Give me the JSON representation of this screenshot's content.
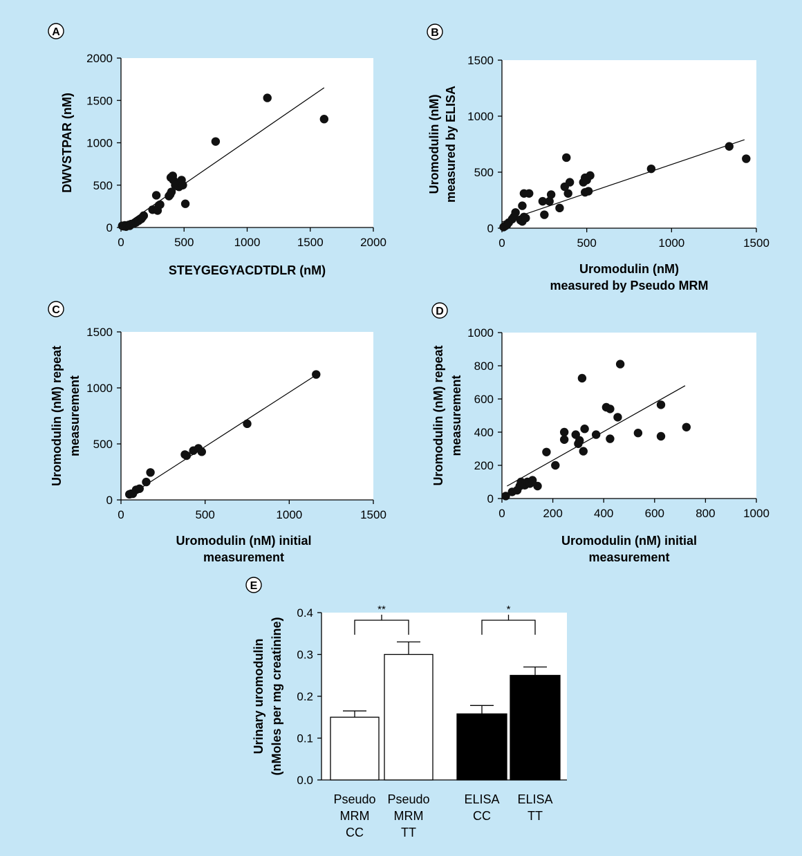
{
  "background": "#c5e6f6",
  "chart_data": [
    {
      "panel": "A",
      "type": "scatter",
      "xlabel": "STEYGEGYACDTDLR (nM)",
      "ylabel": "DWVSTPAR (nM)",
      "xlim": [
        0,
        2000
      ],
      "ylim": [
        0,
        2000
      ],
      "xticks": [
        0,
        500,
        1000,
        1500,
        2000
      ],
      "yticks": [
        0,
        500,
        1000,
        1500,
        2000
      ],
      "fit": [
        [
          0,
          0
        ],
        [
          1610,
          1650
        ]
      ],
      "points": [
        [
          10,
          20
        ],
        [
          20,
          15
        ],
        [
          30,
          25
        ],
        [
          40,
          10
        ],
        [
          50,
          20
        ],
        [
          60,
          30
        ],
        [
          70,
          20
        ],
        [
          80,
          40
        ],
        [
          100,
          45
        ],
        [
          120,
          60
        ],
        [
          140,
          80
        ],
        [
          160,
          100
        ],
        [
          170,
          120
        ],
        [
          180,
          140
        ],
        [
          250,
          210
        ],
        [
          280,
          380
        ],
        [
          290,
          200
        ],
        [
          300,
          260
        ],
        [
          310,
          270
        ],
        [
          380,
          370
        ],
        [
          390,
          390
        ],
        [
          395,
          590
        ],
        [
          400,
          420
        ],
        [
          410,
          610
        ],
        [
          415,
          560
        ],
        [
          430,
          500
        ],
        [
          460,
          480
        ],
        [
          470,
          530
        ],
        [
          480,
          560
        ],
        [
          490,
          500
        ],
        [
          510,
          280
        ],
        [
          750,
          1015
        ],
        [
          1160,
          1530
        ],
        [
          1610,
          1280
        ]
      ]
    },
    {
      "panel": "B",
      "type": "scatter",
      "xlabel": [
        "Uromodulin (nM)",
        "measured by Pseudo MRM"
      ],
      "ylabel": [
        "Uromodulin (nM)",
        "measured by ELISA"
      ],
      "xlim": [
        0,
        1500
      ],
      "ylim": [
        0,
        1500
      ],
      "xticks": [
        0,
        500,
        1000,
        1500
      ],
      "yticks": [
        0,
        500,
        1000,
        1500
      ],
      "fit": [
        [
          0,
          55
        ],
        [
          1430,
          790
        ]
      ],
      "points": [
        [
          10,
          10
        ],
        [
          20,
          20
        ],
        [
          30,
          30
        ],
        [
          40,
          50
        ],
        [
          60,
          80
        ],
        [
          70,
          100
        ],
        [
          80,
          140
        ],
        [
          110,
          70
        ],
        [
          120,
          60
        ],
        [
          130,
          100
        ],
        [
          140,
          90
        ],
        [
          120,
          200
        ],
        [
          130,
          310
        ],
        [
          160,
          310
        ],
        [
          240,
          240
        ],
        [
          250,
          120
        ],
        [
          280,
          240
        ],
        [
          290,
          300
        ],
        [
          340,
          180
        ],
        [
          370,
          370
        ],
        [
          380,
          630
        ],
        [
          390,
          310
        ],
        [
          400,
          410
        ],
        [
          480,
          410
        ],
        [
          490,
          450
        ],
        [
          490,
          320
        ],
        [
          500,
          430
        ],
        [
          510,
          330
        ],
        [
          520,
          470
        ],
        [
          880,
          530
        ],
        [
          1340,
          730
        ],
        [
          1440,
          620
        ]
      ]
    },
    {
      "panel": "C",
      "type": "scatter",
      "xlabel": [
        "Uromodulin (nM) initial",
        "measurement"
      ],
      "ylabel": [
        "Uromodulin (nM) repeat",
        "measurement"
      ],
      "xlim": [
        0,
        1500
      ],
      "ylim": [
        0,
        1500
      ],
      "xticks": [
        0,
        500,
        1000,
        1500
      ],
      "yticks": [
        0,
        500,
        1000,
        1500
      ],
      "fit": [
        [
          50,
          40
        ],
        [
          1160,
          1115
        ]
      ],
      "points": [
        [
          50,
          50
        ],
        [
          60,
          55
        ],
        [
          70,
          55
        ],
        [
          90,
          90
        ],
        [
          110,
          100
        ],
        [
          150,
          160
        ],
        [
          175,
          245
        ],
        [
          380,
          405
        ],
        [
          390,
          395
        ],
        [
          430,
          440
        ],
        [
          460,
          460
        ],
        [
          480,
          430
        ],
        [
          750,
          680
        ],
        [
          1160,
          1120
        ]
      ]
    },
    {
      "panel": "D",
      "type": "scatter",
      "xlabel": [
        "Uromodulin (nM) initial",
        "measurement"
      ],
      "ylabel": [
        "Uromodulin (nM) repeat",
        "measurement"
      ],
      "xlim": [
        0,
        1000
      ],
      "ylim": [
        0,
        1000
      ],
      "xticks": [
        0,
        200,
        400,
        600,
        800,
        1000
      ],
      "yticks": [
        0,
        200,
        400,
        600,
        800,
        1000
      ],
      "fit": [
        [
          20,
          75
        ],
        [
          720,
          680
        ]
      ],
      "points": [
        [
          15,
          15
        ],
        [
          40,
          40
        ],
        [
          60,
          50
        ],
        [
          70,
          75
        ],
        [
          75,
          100
        ],
        [
          90,
          80
        ],
        [
          100,
          100
        ],
        [
          110,
          90
        ],
        [
          120,
          110
        ],
        [
          140,
          75
        ],
        [
          175,
          280
        ],
        [
          210,
          200
        ],
        [
          245,
          355
        ],
        [
          245,
          400
        ],
        [
          290,
          385
        ],
        [
          300,
          330
        ],
        [
          305,
          350
        ],
        [
          315,
          725
        ],
        [
          320,
          285
        ],
        [
          325,
          420
        ],
        [
          370,
          385
        ],
        [
          410,
          550
        ],
        [
          425,
          540
        ],
        [
          425,
          360
        ],
        [
          455,
          490
        ],
        [
          465,
          810
        ],
        [
          535,
          395
        ],
        [
          625,
          565
        ],
        [
          625,
          375
        ],
        [
          725,
          430
        ]
      ]
    },
    {
      "panel": "E",
      "type": "bar",
      "ylabel": [
        "Urinary uromodulin",
        "(nMoles per mg creatinine)"
      ],
      "ylim": [
        0,
        0.4
      ],
      "yticks": [
        "0.0",
        "0.1",
        "0.2",
        "0.3",
        "0.4"
      ],
      "categories": [
        [
          "Pseudo",
          "MRM",
          "CC"
        ],
        [
          "Pseudo",
          "MRM",
          "TT"
        ],
        [
          "ELISA",
          "CC"
        ],
        [
          "ELISA",
          "TT"
        ]
      ],
      "values": [
        0.15,
        0.3,
        0.158,
        0.25
      ],
      "errors": [
        0.015,
        0.03,
        0.02,
        0.02
      ],
      "fills": [
        "#ffffff",
        "#ffffff",
        "#000000",
        "#000000"
      ],
      "significance": [
        {
          "between": [
            0,
            1
          ],
          "label": "**"
        },
        {
          "between": [
            2,
            3
          ],
          "label": "*"
        }
      ]
    }
  ]
}
